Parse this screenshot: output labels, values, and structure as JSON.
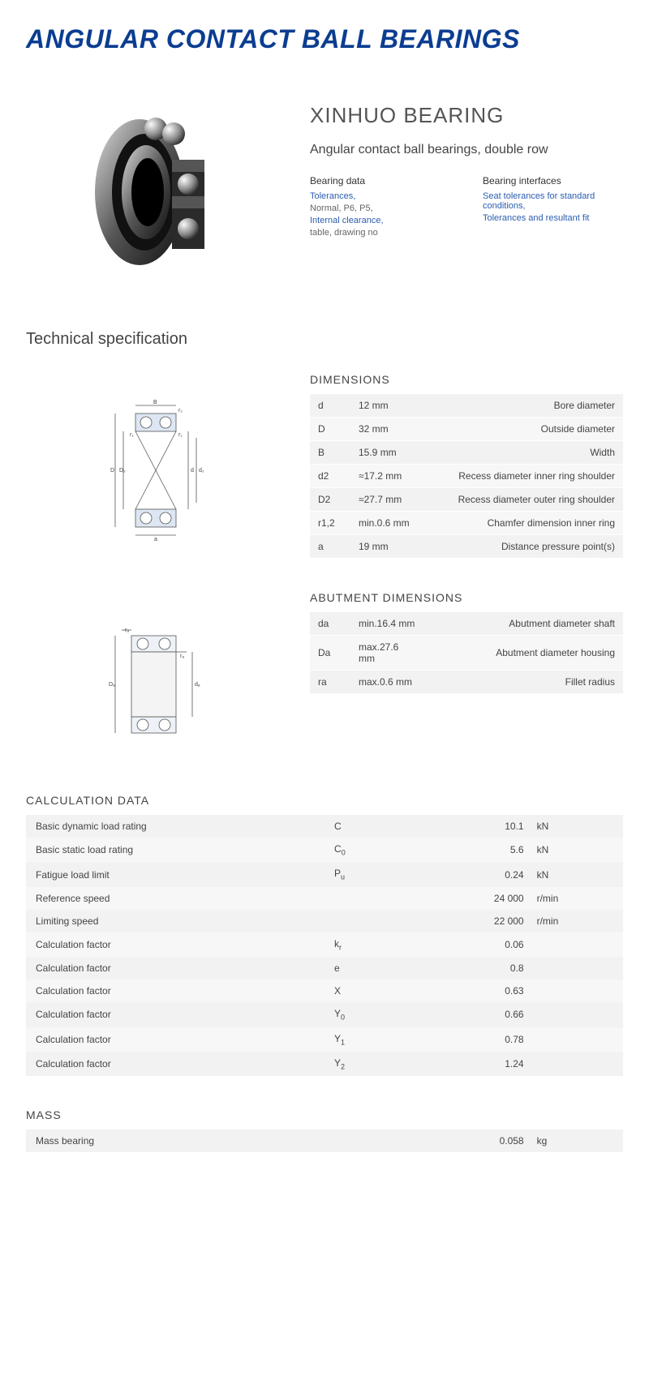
{
  "title": "ANGULAR CONTACT BALL BEARINGS",
  "brand": "XINHUO BEARING",
  "subtitle": "Angular contact ball bearings, double row",
  "bearing_data": {
    "title": "Bearing data",
    "items": [
      {
        "text": "Tolerances,",
        "link": true
      },
      {
        "text": "Normal, P6, P5,",
        "link": false
      },
      {
        "text": "Internal clearance,",
        "link": true
      },
      {
        "text": "table, drawing no",
        "link": false
      }
    ]
  },
  "bearing_interfaces": {
    "title": "Bearing interfaces",
    "items": [
      {
        "text": "Seat tolerances for standard conditions,",
        "link": true
      },
      {
        "text": "Tolerances and resultant fit",
        "link": true
      }
    ]
  },
  "technical_title": "Technical specification",
  "dimensions": {
    "title": "DIMENSIONS",
    "rows": [
      {
        "sym": "d",
        "val": "12  mm",
        "desc": "Bore diameter"
      },
      {
        "sym": "D",
        "val": "32  mm",
        "desc": "Outside diameter"
      },
      {
        "sym": "B",
        "val": "15.9  mm",
        "desc": "Width"
      },
      {
        "sym": "d2",
        "val": "≈17.2 mm",
        "desc": "Recess diameter inner ring shoulder"
      },
      {
        "sym": "D2",
        "val": "≈27.7 mm",
        "desc": "Recess diameter outer ring shoulder"
      },
      {
        "sym": "r1,2",
        "val": "min.0.6 mm",
        "desc": "Chamfer dimension inner ring"
      },
      {
        "sym": "a",
        "val": "19  mm",
        "desc": "Distance pressure point(s)"
      }
    ]
  },
  "abutment": {
    "title": "ABUTMENT DIMENSIONS",
    "rows": [
      {
        "sym": "da",
        "val": "min.16.4 mm",
        "desc": "Abutment diameter shaft"
      },
      {
        "sym": "Da",
        "val": "max.27.6 mm",
        "desc": "Abutment diameter housing"
      },
      {
        "sym": "ra",
        "val": "max.0.6 mm",
        "desc": "Fillet radius"
      }
    ]
  },
  "calculation": {
    "title": "CALCULATION DATA",
    "rows": [
      {
        "label": "Basic dynamic load rating",
        "sym": "C",
        "sub": "",
        "val": "10.1",
        "unit": "kN"
      },
      {
        "label": "Basic static load rating",
        "sym": "C",
        "sub": "0",
        "val": "5.6",
        "unit": "kN"
      },
      {
        "label": "Fatigue load limit",
        "sym": "P",
        "sub": "u",
        "val": "0.24",
        "unit": "kN"
      },
      {
        "label": "Reference speed",
        "sym": "",
        "sub": "",
        "val": "24 000",
        "unit": "r/min"
      },
      {
        "label": "Limiting speed",
        "sym": "",
        "sub": "",
        "val": "22 000",
        "unit": "r/min"
      },
      {
        "label": "Calculation factor",
        "sym": "k",
        "sub": "r",
        "val": "0.06",
        "unit": ""
      },
      {
        "label": "Calculation factor",
        "sym": "e",
        "sub": "",
        "val": "0.8",
        "unit": ""
      },
      {
        "label": "Calculation factor",
        "sym": "X",
        "sub": "",
        "val": "0.63",
        "unit": ""
      },
      {
        "label": "Calculation factor",
        "sym": "Y",
        "sub": "0",
        "val": "0.66",
        "unit": ""
      },
      {
        "label": "Calculation factor",
        "sym": "Y",
        "sub": "1",
        "val": "0.78",
        "unit": ""
      },
      {
        "label": "Calculation factor",
        "sym": "Y",
        "sub": "2",
        "val": "1.24",
        "unit": ""
      }
    ]
  },
  "mass": {
    "title": "MASS",
    "rows": [
      {
        "label": "Mass bearing",
        "sym": "",
        "sub": "",
        "val": "0.058",
        "unit": "kg"
      }
    ]
  },
  "colors": {
    "title": "#0b3d91",
    "link": "#2a5db0",
    "row_odd": "#f2f2f2",
    "row_even": "#f7f7f7"
  }
}
